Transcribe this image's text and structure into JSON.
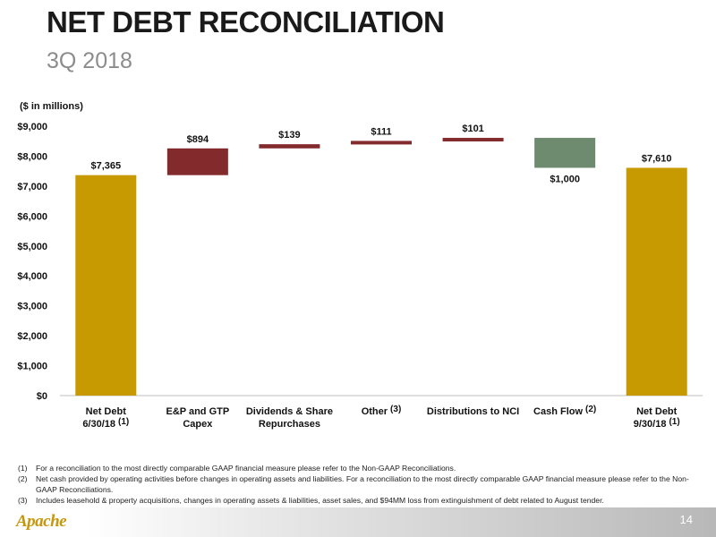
{
  "header": {
    "title": "NET DEBT RECONCILIATION",
    "subtitle": "3Q 2018"
  },
  "units_label": "($ in millions)",
  "colors": {
    "gold": "#C89A02",
    "maroon": "#832A2C",
    "green": "#6E8A6F"
  },
  "chart_data": {
    "type": "bar",
    "subtype": "waterfall",
    "ylim": [
      0,
      9000
    ],
    "yticks": [
      0,
      1000,
      2000,
      3000,
      4000,
      5000,
      6000,
      7000,
      8000,
      9000
    ],
    "ytick_labels": [
      "$0",
      "$1,000",
      "$2,000",
      "$3,000",
      "$4,000",
      "$5,000",
      "$6,000",
      "$7,000",
      "$8,000",
      "$9,000"
    ],
    "grid": false,
    "categories": [
      {
        "line1": "Net Debt",
        "line2": "6/30/18",
        "note": "(1)"
      },
      {
        "line1": "E&P and GTP",
        "line2": "Capex",
        "note": ""
      },
      {
        "line1": "Dividends & Share",
        "line2": "Repurchases",
        "note": ""
      },
      {
        "line1": "Other",
        "line2": "",
        "note": "(3)"
      },
      {
        "line1": "Distributions to NCI",
        "line2": "",
        "note": ""
      },
      {
        "line1": "Cash Flow",
        "line2": "",
        "note": "(2)"
      },
      {
        "line1": "Net Debt",
        "line2": "9/30/18",
        "note": "(1)"
      }
    ],
    "bars": [
      {
        "start": 0,
        "end": 7365,
        "label": "$7,365",
        "color": "gold",
        "label_pos": "above"
      },
      {
        "start": 7365,
        "end": 8259,
        "label": "$894",
        "color": "maroon",
        "label_pos": "above"
      },
      {
        "start": 8259,
        "end": 8398,
        "label": "$139",
        "color": "maroon",
        "label_pos": "above"
      },
      {
        "start": 8398,
        "end": 8509,
        "label": "$111",
        "color": "maroon",
        "label_pos": "above"
      },
      {
        "start": 8509,
        "end": 8610,
        "label": "$101",
        "color": "maroon",
        "label_pos": "above"
      },
      {
        "start": 8610,
        "end": 7610,
        "label": "$1,000",
        "color": "green",
        "label_pos": "below"
      },
      {
        "start": 0,
        "end": 7610,
        "label": "$7,610",
        "color": "gold",
        "label_pos": "above"
      }
    ]
  },
  "footnotes": [
    {
      "num": "(1)",
      "text": "For a reconciliation to the most directly comparable GAAP financial measure please refer to the Non-GAAP Reconciliations."
    },
    {
      "num": "(2)",
      "text": "Net cash provided by operating activities before changes in operating assets and liabilities.  For a reconciliation to the most directly comparable GAAP financial measure please refer to the Non-GAAP Reconciliations."
    },
    {
      "num": "(3)",
      "text": "Includes leasehold & property acquisitions, changes in operating assets & liabilities, asset sales, and $94MM loss from extinguishment of debt related to August tender."
    }
  ],
  "footer": {
    "logo_text": "Apache",
    "page_number": "14"
  }
}
